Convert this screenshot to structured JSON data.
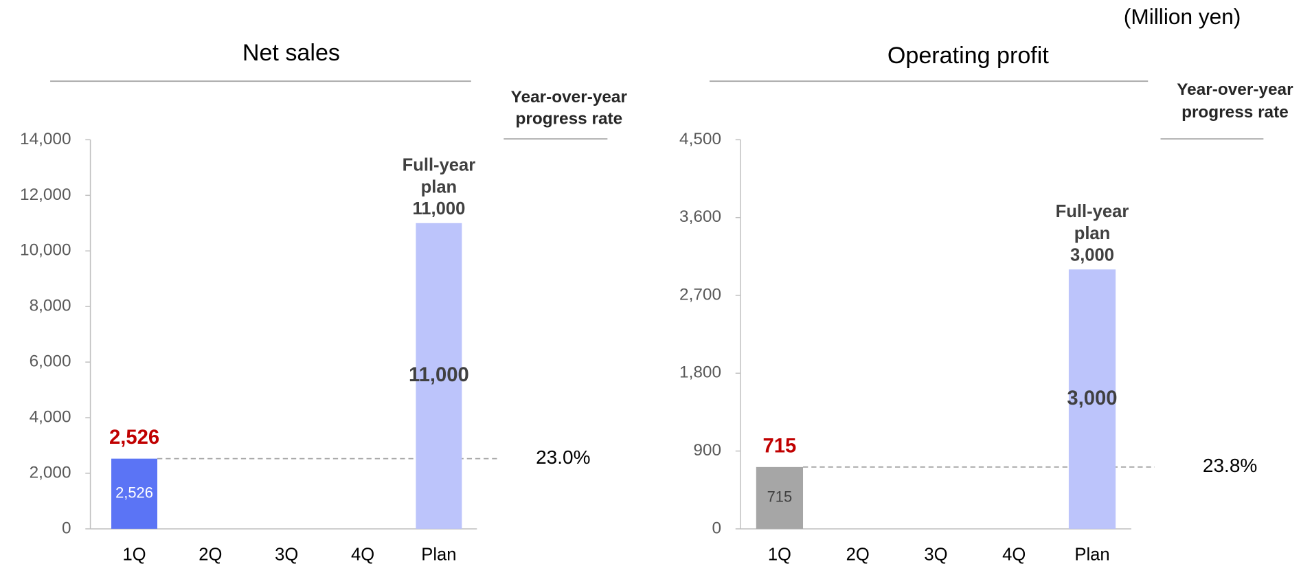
{
  "unit_label": "(Million yen)",
  "chart_data": [
    {
      "type": "bar",
      "title": "Net sales",
      "categories": [
        "1Q",
        "2Q",
        "3Q",
        "4Q",
        "Plan"
      ],
      "values": [
        2526,
        null,
        null,
        null,
        11000
      ],
      "value_labels": [
        "2,526",
        null,
        null,
        null,
        "11,000"
      ],
      "colors": [
        "#5b74f5",
        null,
        null,
        null,
        "#bcc4fb"
      ],
      "ylim": [
        0,
        14000
      ],
      "yticks": [
        0,
        {
          "value": 2000,
          "label": "2,000"
        },
        {
          "value": 4000,
          "label": "4,000"
        },
        {
          "value": 6000,
          "label": "6,000"
        },
        {
          "value": 8000,
          "label": "8,000"
        },
        {
          "value": 10000,
          "label": "10,000"
        },
        {
          "value": 12000,
          "label": "12,000"
        },
        {
          "value": 14000,
          "label": "14,000"
        }
      ],
      "plan_annotation": [
        "Full-year",
        "plan"
      ],
      "progress_header": [
        "Year-over-year",
        "progress rate"
      ],
      "progress_rate": "23.0%"
    },
    {
      "type": "bar",
      "title": "Operating profit",
      "categories": [
        "1Q",
        "2Q",
        "3Q",
        "4Q",
        "Plan"
      ],
      "values": [
        715,
        null,
        null,
        null,
        3000
      ],
      "value_labels": [
        null,
        null,
        null,
        null,
        "3,000"
      ],
      "colors": [
        "#a6a6a6",
        null,
        null,
        null,
        "#bcc4fb"
      ],
      "ylim": [
        0,
        4500
      ],
      "yticks": [
        0,
        900,
        {
          "value": 1800,
          "label": "1,800"
        },
        {
          "value": 2700,
          "label": "2,700"
        },
        {
          "value": 3600,
          "label": "3,600"
        },
        {
          "value": 4500,
          "label": "4,500"
        }
      ],
      "plan_annotation": [
        "Full-year",
        "plan"
      ],
      "progress_header": [
        "Year-over-year",
        "progress rate"
      ],
      "progress_rate": "23.8%"
    }
  ]
}
